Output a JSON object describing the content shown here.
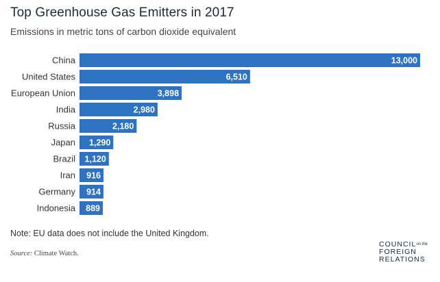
{
  "header": {
    "title": "Top Greenhouse Gas Emitters in 2017",
    "subtitle": "Emissions in metric tons of carbon dioxide equivalent"
  },
  "footer": {
    "note": "Note: EU data does not include the United Kingdom.",
    "source_label": "Source:",
    "source_text": "Climate Watch.",
    "logo_line1": "COUNCIL",
    "logo_on": "on the",
    "logo_line2": "FOREIGN",
    "logo_line3": "RELATIONS"
  },
  "colors": {
    "bar": "#2e73c2",
    "label_text": "#ffffff"
  },
  "chart_data": {
    "type": "bar",
    "orientation": "horizontal",
    "title": "Top Greenhouse Gas Emitters in 2017",
    "subtitle": "Emissions in metric tons of carbon dioxide equivalent",
    "categories": [
      "China",
      "United States",
      "European Union",
      "India",
      "Russia",
      "Japan",
      "Brazil",
      "Iran",
      "Germany",
      "Indonesia"
    ],
    "values": [
      13000,
      6510,
      3898,
      2980,
      2180,
      1290,
      1120,
      916,
      914,
      889
    ],
    "value_labels": [
      "13,000",
      "6,510",
      "3,898",
      "2,980",
      "2,180",
      "1,290",
      "1,120",
      "916",
      "914",
      "889"
    ],
    "xlim": [
      0,
      13000
    ],
    "grid": false,
    "legend": "none"
  }
}
